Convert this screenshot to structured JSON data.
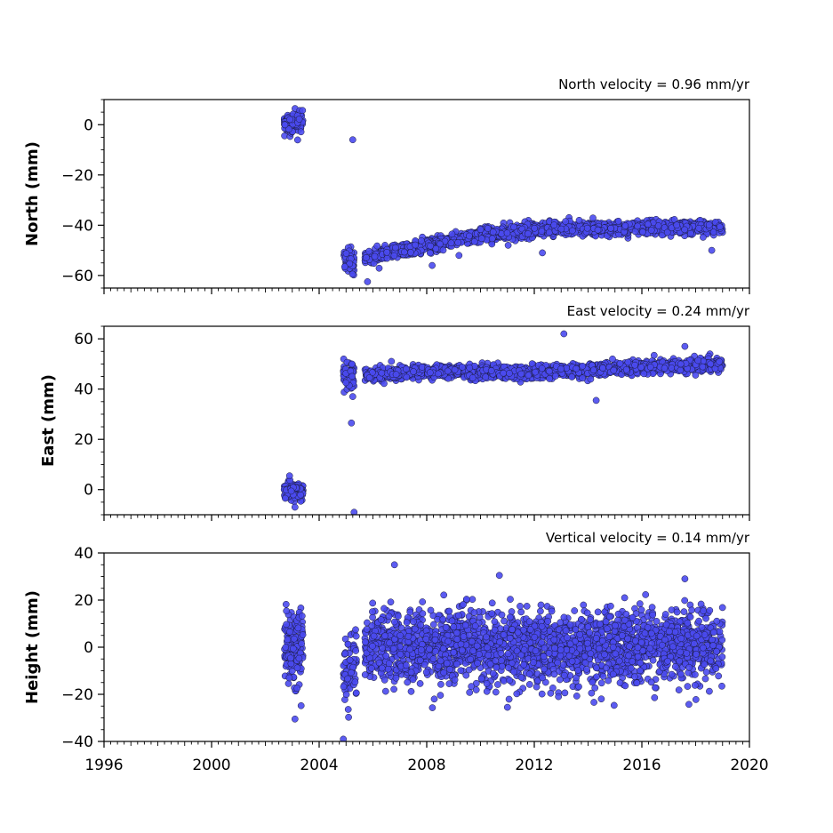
{
  "chart_data": [
    {
      "type": "scatter",
      "title": "North velocity = 0.96 mm/yr",
      "ylabel": "North (mm)",
      "xlim": [
        1996,
        2020
      ],
      "ylim": [
        -65,
        10
      ],
      "yticks": [
        0,
        -20,
        -40,
        -60
      ],
      "color": "#4a4af0",
      "segments": [
        {
          "x0": 2002.7,
          "x1": 2003.4,
          "y0": 0.5,
          "y1": 1.5,
          "sd": 1.8,
          "n": 140
        },
        {
          "x0": 2004.9,
          "x1": 2005.3,
          "y0": -53,
          "y1": -55,
          "sd": 2.5,
          "n": 60
        },
        {
          "x0": 2005.7,
          "x1": 2006.5,
          "y0": -53,
          "y1": -51,
          "sd": 1.3,
          "n": 110
        },
        {
          "x0": 2006.5,
          "x1": 2010,
          "y0": -51,
          "y1": -44,
          "sd": 1.3,
          "n": 420
        },
        {
          "x0": 2010,
          "x1": 2013,
          "y0": -44,
          "y1": -41,
          "sd": 1.3,
          "n": 380
        },
        {
          "x0": 2013,
          "x1": 2019,
          "y0": -41.5,
          "y1": -40.5,
          "sd": 1.3,
          "n": 700
        }
      ],
      "outliers": [
        {
          "x": 2005.25,
          "y": -6
        },
        {
          "x": 2005.8,
          "y": -62.5
        },
        {
          "x": 2009.2,
          "y": -52
        },
        {
          "x": 2012.3,
          "y": -51
        },
        {
          "x": 2018.6,
          "y": -50
        },
        {
          "x": 2008.2,
          "y": -56
        }
      ]
    },
    {
      "type": "scatter",
      "title": "East velocity = 0.24 mm/yr",
      "ylabel": "East (mm)",
      "xlim": [
        1996,
        2020
      ],
      "ylim": [
        -10,
        65
      ],
      "yticks": [
        60,
        40,
        20,
        0
      ],
      "color": "#4a4af0",
      "segments": [
        {
          "x0": 2002.7,
          "x1": 2003.4,
          "y0": -0.5,
          "y1": -0.5,
          "sd": 1.6,
          "n": 140
        },
        {
          "x0": 2004.9,
          "x1": 2005.3,
          "y0": 46,
          "y1": 46,
          "sd": 2.5,
          "n": 60
        },
        {
          "x0": 2005.7,
          "x1": 2008,
          "y0": 45.5,
          "y1": 47,
          "sd": 1.3,
          "n": 300
        },
        {
          "x0": 2008,
          "x1": 2012,
          "y0": 47,
          "y1": 46.5,
          "sd": 1.3,
          "n": 500
        },
        {
          "x0": 2012,
          "x1": 2019,
          "y0": 46.5,
          "y1": 50,
          "sd": 1.3,
          "n": 800
        }
      ],
      "outliers": [
        {
          "x": 2005.2,
          "y": 26.5
        },
        {
          "x": 2005.3,
          "y": -9
        },
        {
          "x": 2005.25,
          "y": 37
        },
        {
          "x": 2013.1,
          "y": 62
        },
        {
          "x": 2014.3,
          "y": 35.5
        },
        {
          "x": 2002.9,
          "y": 5.5
        },
        {
          "x": 2003.1,
          "y": -7
        },
        {
          "x": 2017.6,
          "y": 57
        }
      ]
    },
    {
      "type": "scatter",
      "title": "Vertical velocity = 0.14 mm/yr",
      "ylabel": "Height (mm)",
      "xlabel": "",
      "xlim": [
        1996,
        2020
      ],
      "ylim": [
        -40,
        40
      ],
      "yticks": [
        40,
        20,
        0,
        -20,
        -40
      ],
      "xticks": [
        1996,
        2000,
        2004,
        2008,
        2012,
        2016,
        2020
      ],
      "color": "#4a4af0",
      "segments": [
        {
          "x0": 2002.7,
          "x1": 2003.4,
          "y0": 0,
          "y1": 0,
          "sd": 8,
          "n": 150
        },
        {
          "x0": 2004.9,
          "x1": 2005.4,
          "y0": -15,
          "y1": -5,
          "sd": 7,
          "n": 70
        },
        {
          "x0": 2005.7,
          "x1": 2019,
          "y0": 0,
          "y1": 0,
          "sd": 7.5,
          "n": 2200
        }
      ],
      "outliers": [
        {
          "x": 2006.8,
          "y": 35
        },
        {
          "x": 2010.7,
          "y": 30.5
        },
        {
          "x": 2017.6,
          "y": 29
        },
        {
          "x": 2003.1,
          "y": -30.5
        },
        {
          "x": 2004.9,
          "y": -39
        },
        {
          "x": 2011,
          "y": -25.5
        },
        {
          "x": 2012.9,
          "y": -21
        }
      ]
    }
  ]
}
